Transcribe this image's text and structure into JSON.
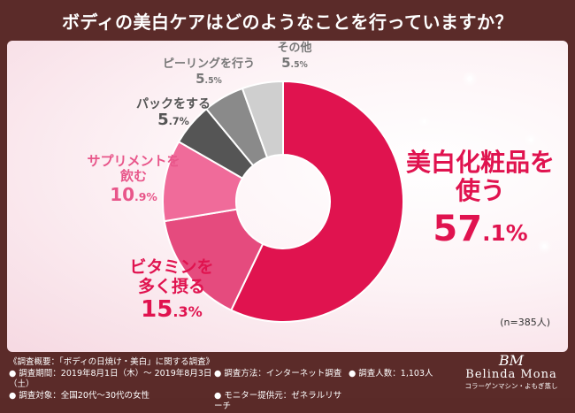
{
  "title": "ボディの美白ケアはどのようなことを行っていますか？",
  "colors": {
    "bg": "#5b2b29",
    "accent": "#e0134f"
  },
  "chart_data": {
    "type": "pie",
    "donut": true,
    "title": "ボディの美白ケアはどのようなことを行っていますか？",
    "sample_note": "(n=385人)",
    "slices": [
      {
        "label": "美白化粧品を使う",
        "value": 57.1,
        "int": "57",
        "dec": ".1%",
        "color": "#e0134f"
      },
      {
        "label": "ビタミンを多く摂る",
        "value": 15.3,
        "int": "15",
        "dec": ".3%",
        "color": "#e54b7e"
      },
      {
        "label": "サプリメントを飲む",
        "value": 10.9,
        "int": "10",
        "dec": ".9%",
        "color": "#f06b9a"
      },
      {
        "label": "パックをする",
        "value": 5.7,
        "int": "5",
        "dec": ".7%",
        "color": "#555555"
      },
      {
        "label": "ピーリングを行う",
        "value": 5.5,
        "int": "5",
        "dec": ".5%",
        "color": "#8a8a8a"
      },
      {
        "label": "その他",
        "value": 5.5,
        "int": "5",
        "dec": ".5%",
        "color": "#cfcfcf"
      }
    ]
  },
  "labels": {
    "main_line1": "美白化粧品を",
    "main_line2": "使う",
    "vit_line1": "ビタミンを",
    "vit_line2": "多く摂る",
    "sup_line1": "サプリメントを",
    "sup_line2": "飲む",
    "pack": "パックをする",
    "peel": "ピーリングを行う",
    "other": "その他"
  },
  "footer": {
    "overview": "《調査概要：「ボディの日焼け・美白」に関する調査》",
    "period": "● 調査期間：2019年8月1日（木）～ 2019年8月3日（土）",
    "target": "● 調査対象：全国20代～30代の女性",
    "method": "● 調査方法：インターネット調査",
    "provider": "● モニター提供元：ゼネラルリサーチ",
    "count": "● 調査人数：1,103人"
  },
  "logo": {
    "monogram": "BM",
    "brand": "Belinda Mona",
    "sub": "コラーゲンマシン・よもぎ蒸し"
  }
}
